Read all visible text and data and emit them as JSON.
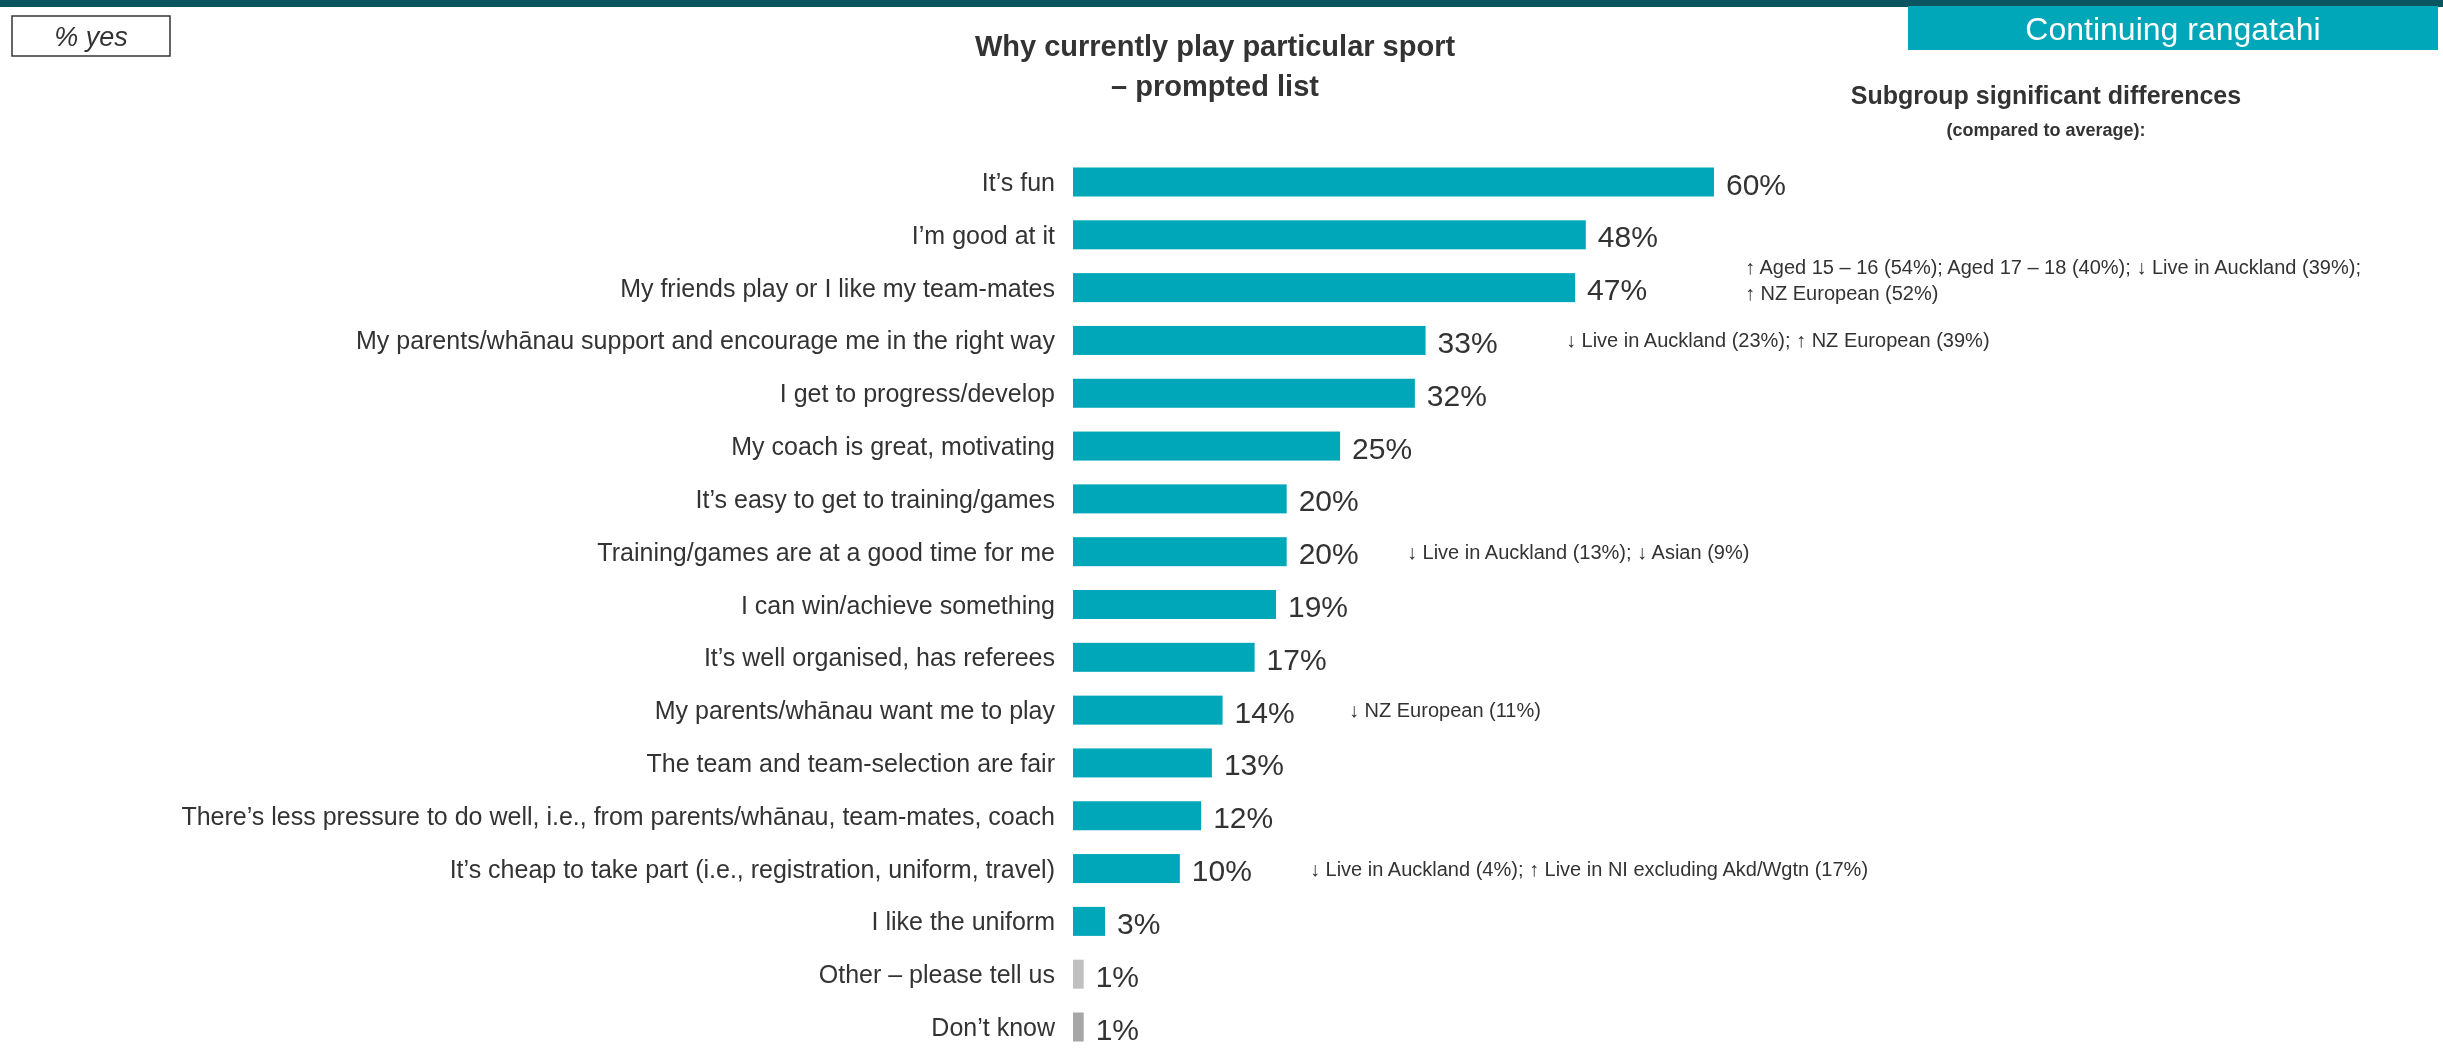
{
  "chart_data": {
    "type": "bar",
    "orientation": "horizontal",
    "title": "Why currently play particular sport\n– prompted list",
    "categories": [
      "It’s fun",
      "I’m good at it",
      "My friends play or I like my team-mates",
      "My parents/whānau support and encourage me in the right way",
      "I get to progress/develop",
      "My coach is great, motivating",
      "It’s easy to get to training/games",
      "Training/games are at a good time for me",
      "I can win/achieve something",
      "It’s well organised, has referees",
      "My parents/whānau want me to play",
      "The team and team-selection are fair",
      "There’s less pressure to do well, i.e., from parents/whānau, team-mates, coach",
      "It’s cheap to take part (i.e., registration, uniform, travel)",
      "I like the uniform",
      "Other – please tell us",
      "Don’t know"
    ],
    "values": [
      60,
      48,
      47,
      33,
      32,
      25,
      20,
      20,
      19,
      17,
      14,
      13,
      12,
      10,
      3,
      1,
      1
    ],
    "value_labels": [
      "60%",
      "48%",
      "47%",
      "33%",
      "32%",
      "25%",
      "20%",
      "20%",
      "19%",
      "17%",
      "14%",
      "13%",
      "12%",
      "10%",
      "3%",
      "1%",
      "1%"
    ],
    "colors": [
      "#00a7b9",
      "#00a7b9",
      "#00a7b9",
      "#00a7b9",
      "#00a7b9",
      "#00a7b9",
      "#00a7b9",
      "#00a7b9",
      "#00a7b9",
      "#00a7b9",
      "#00a7b9",
      "#00a7b9",
      "#00a7b9",
      "#00a7b9",
      "#00a7b9",
      "#c0c0c0",
      "#a6a6a6"
    ],
    "annotations": [
      "% yes",
      "Continuing rangatahi",
      "Subgroup significant differences",
      "(compared to average):",
      "↑ Aged 15 – 16 (54%); Aged 17 – 18 (40%); ↓ Live in Auckland (39%);\n↑ NZ European (52%)",
      "↓ Live in Auckland (23%); ↑ NZ European (39%)",
      "↓ Live in Auckland (13%); ↓ Asian (9%)",
      "↓ NZ European (11%)",
      "↓ Live in Auckland (4%); ↑ Live in NI excluding Akd/Wgtn (17%)"
    ]
  }
}
